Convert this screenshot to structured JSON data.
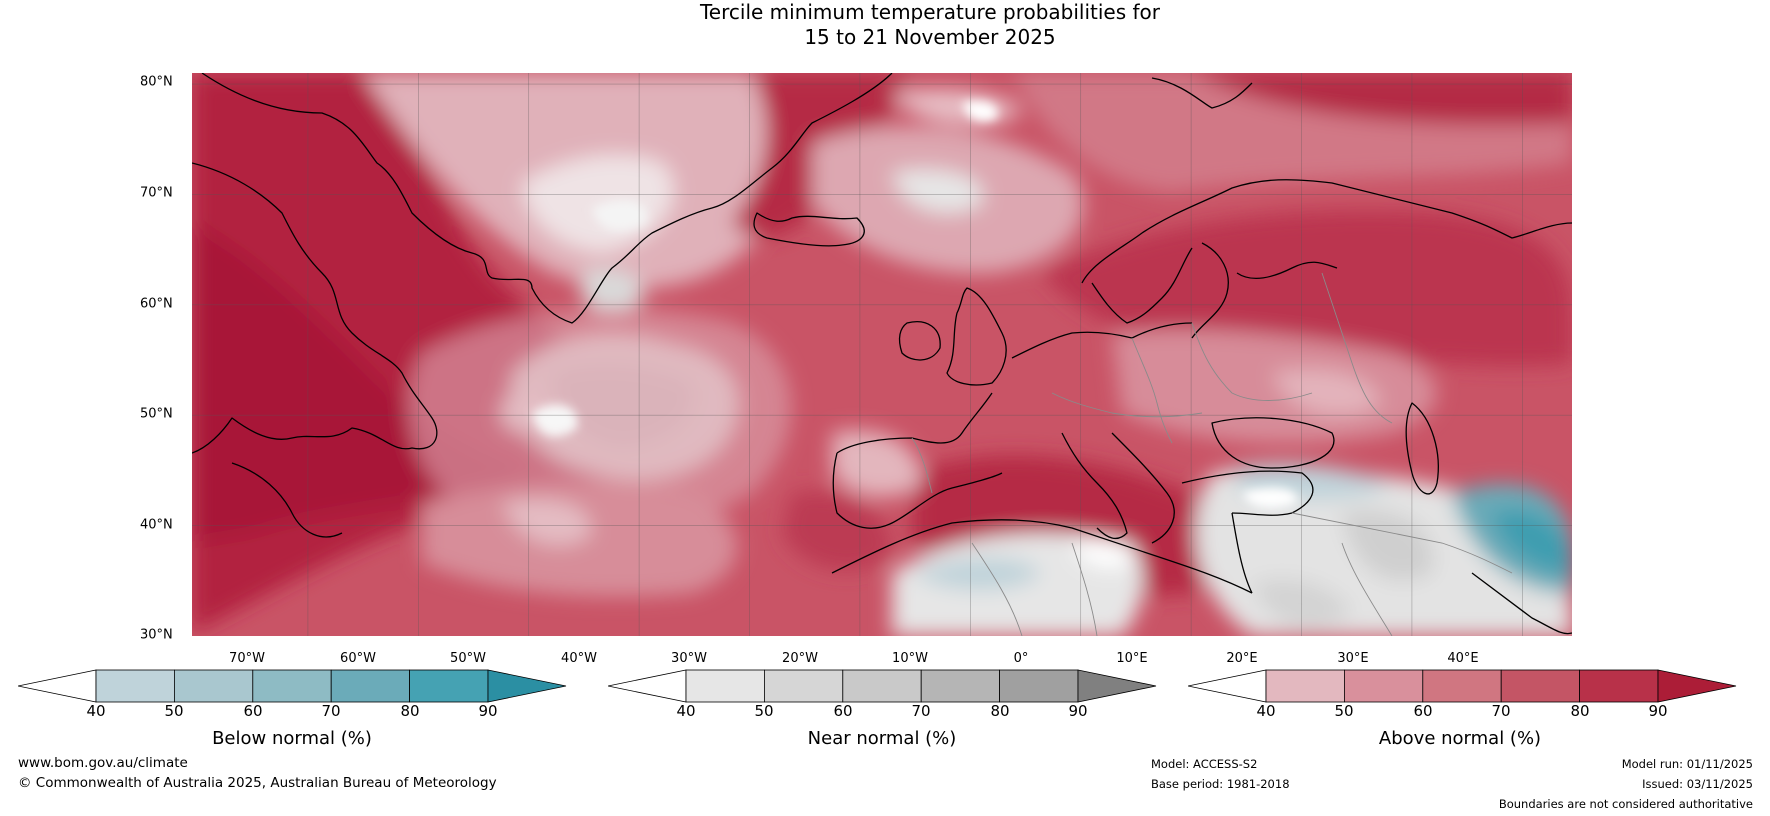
{
  "title": {
    "line1": "Tercile minimum temperature probabilities for",
    "line2": "15 to 21 November 2025"
  },
  "axes": {
    "lat_labels": [
      "80°N",
      "70°N",
      "60°N",
      "50°N",
      "40°N",
      "30°N"
    ],
    "lon_labels": [
      "70°W",
      "60°W",
      "50°W",
      "40°W",
      "30°W",
      "20°W",
      "10°W",
      "0°",
      "10°E",
      "20°E",
      "30°E",
      "40°E"
    ],
    "lat_range": [
      30,
      81
    ],
    "lon_range": [
      -80.5,
      44.5
    ]
  },
  "colorbars": [
    {
      "name": "below",
      "label": "Below normal (%)",
      "ticks": [
        "40",
        "50",
        "60",
        "70",
        "80",
        "90"
      ],
      "colors": [
        "#ffffff",
        "#bfd3da",
        "#a9c7cf",
        "#8ebbc4",
        "#6babb9",
        "#45a2b3",
        "#2b8fa3"
      ]
    },
    {
      "name": "near",
      "label": "Near normal (%)",
      "ticks": [
        "40",
        "50",
        "60",
        "70",
        "80",
        "90"
      ],
      "colors": [
        "#ffffff",
        "#e6e6e6",
        "#d6d6d6",
        "#c9c9c9",
        "#b5b5b5",
        "#a0a0a0",
        "#808080"
      ]
    },
    {
      "name": "above",
      "label": "Above normal (%)",
      "ticks": [
        "40",
        "50",
        "60",
        "70",
        "80",
        "90"
      ],
      "colors": [
        "#ffffff",
        "#e3b8bf",
        "#d9909c",
        "#d07681",
        "#c45565",
        "#b83149",
        "#ac1d37"
      ]
    }
  ],
  "footer": {
    "website": "www.bom.gov.au/climate",
    "copyright": "© Commonwealth of Australia 2025, Australian Bureau of Meteorology",
    "model": "Model: ACCESS-S2",
    "base_period": "Base period: 1981-2018",
    "model_run": "Model run: 01/11/2025",
    "issued": "Issued: 03/11/2025",
    "disclaimer": "Boundaries are not considered authoritative"
  }
}
